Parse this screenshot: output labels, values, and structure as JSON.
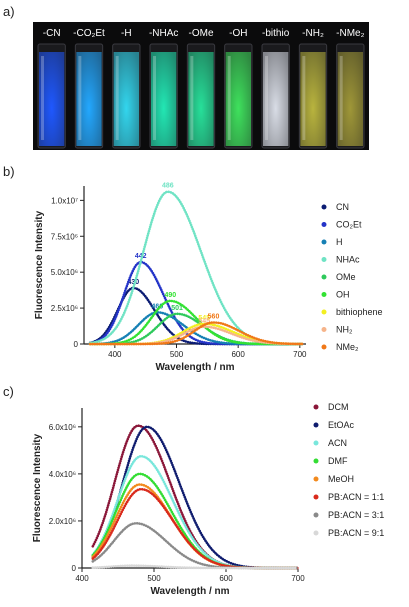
{
  "panel_labels": [
    "a)",
    "b)",
    "c)"
  ],
  "vials": [
    {
      "label": "-CN",
      "color": "#1f58ff"
    },
    {
      "label": "-CO₂Et",
      "color": "#23a8ff"
    },
    {
      "label": "-H",
      "color": "#33d6ee"
    },
    {
      "label": "-NHAc",
      "color": "#22e7b4"
    },
    {
      "label": "-OMe",
      "color": "#27e09a"
    },
    {
      "label": "-OH",
      "color": "#3fe15d"
    },
    {
      "label": "-bithio",
      "color": "#d9dde6"
    },
    {
      "label": "-NH₂",
      "color": "#b9b43e"
    },
    {
      "label": "-NMe₂",
      "color": "#9f9738"
    }
  ],
  "chart_data": [
    {
      "type": "line",
      "xlabel": "Wavelength / nm",
      "ylabel": "Fluorescence Intensity",
      "xlim": [
        350,
        710
      ],
      "ylim": [
        0,
        11000000
      ],
      "xticks": [
        "400",
        "500",
        "600",
        "700"
      ],
      "xtick_values": [
        400,
        500,
        600,
        700
      ],
      "yticks": [
        "0",
        "2.5x10⁶",
        "5.0x10⁶",
        "7.5x10⁶",
        "1.0x10⁷"
      ],
      "ytick_values": [
        0,
        2500000,
        5000000,
        7500000,
        10000000
      ],
      "legend_position": "right",
      "series": [
        {
          "name": "CN",
          "color": "#0b1c73",
          "peak_x": 430,
          "peak_y": 3900000,
          "fwhm": 70,
          "label": "430"
        },
        {
          "name": "CO₂Et",
          "color": "#2434c8",
          "peak_x": 442,
          "peak_y": 5700000,
          "fwhm": 75,
          "label": "442"
        },
        {
          "name": "H",
          "color": "#1680b4",
          "peak_x": 469,
          "peak_y": 2200000,
          "fwhm": 85,
          "label": "469"
        },
        {
          "name": "NHAc",
          "color": "#6fe3c4",
          "peak_x": 486,
          "peak_y": 10600000,
          "fwhm": 110,
          "label": "486"
        },
        {
          "name": "OMe",
          "color": "#2ec95b",
          "peak_x": 501,
          "peak_y": 2100000,
          "fwhm": 85,
          "label": "501"
        },
        {
          "name": "OH",
          "color": "#33e233",
          "peak_x": 490,
          "peak_y": 3000000,
          "fwhm": 85,
          "label": "490"
        },
        {
          "name": "bithiophene",
          "color": "#f3ef21",
          "peak_x": 545,
          "peak_y": 1400000,
          "fwhm": 95,
          "label": "545"
        },
        {
          "name": "NH₂",
          "color": "#f6b48a",
          "peak_x": 545,
          "peak_y": 1200000,
          "fwhm": 90,
          "label": "545"
        },
        {
          "name": "NMe₂",
          "color": "#f07818",
          "peak_x": 560,
          "peak_y": 1500000,
          "fwhm": 85,
          "label": "560"
        }
      ]
    },
    {
      "type": "line",
      "xlabel": "Wavelength / nm",
      "ylabel": "Fluorescence Intensity",
      "xlim": [
        400,
        700
      ],
      "ylim": [
        0,
        6800000
      ],
      "xticks": [
        "400",
        "500",
        "600",
        "700"
      ],
      "xtick_values": [
        400,
        500,
        600,
        700
      ],
      "yticks": [
        "0",
        "2.0x10⁶",
        "4.0x10⁶",
        "6.0x10⁶"
      ],
      "ytick_values": [
        0,
        2000000,
        4000000,
        6000000
      ],
      "legend_position": "right",
      "series": [
        {
          "name": "DCM",
          "color": "#8a1638",
          "peak_x": 478,
          "peak_y": 6050000,
          "fwhm": 90
        },
        {
          "name": "EtOAc",
          "color": "#0f1c6e",
          "peak_x": 490,
          "peak_y": 6000000,
          "fwhm": 92
        },
        {
          "name": "ACN",
          "color": "#79e7dc",
          "peak_x": 482,
          "peak_y": 4750000,
          "fwhm": 90
        },
        {
          "name": "DMF",
          "color": "#33dd33",
          "peak_x": 480,
          "peak_y": 4000000,
          "fwhm": 90
        },
        {
          "name": "MeOH",
          "color": "#f28a1e",
          "peak_x": 480,
          "peak_y": 3550000,
          "fwhm": 90
        },
        {
          "name": "PB:ACN = 1:1",
          "color": "#d92a1c",
          "peak_x": 482,
          "peak_y": 3350000,
          "fwhm": 90
        },
        {
          "name": "PB:ACN = 3:1",
          "color": "#8a8a8a",
          "peak_x": 475,
          "peak_y": 1900000,
          "fwhm": 85
        },
        {
          "name": "PB:ACN = 9:1",
          "color": "#d8d8d8",
          "peak_x": 470,
          "peak_y": 100000,
          "fwhm": 80
        }
      ]
    }
  ]
}
